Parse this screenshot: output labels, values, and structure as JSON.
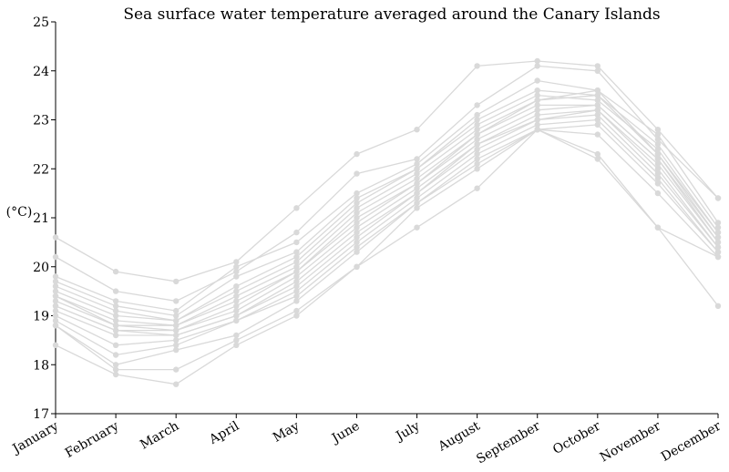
{
  "chart_data": {
    "type": "line",
    "title": "Sea surface water temperature averaged around the Canary Islands",
    "xlabel": "",
    "ylabel": "(°C)",
    "ylim": [
      17,
      25
    ],
    "yticks": [
      "17",
      "18",
      "19",
      "20",
      "21",
      "22",
      "23",
      "24",
      "25"
    ],
    "categories": [
      "January",
      "February",
      "March",
      "April",
      "May",
      "June",
      "July",
      "August",
      "September",
      "October",
      "November",
      "December"
    ],
    "grid": false,
    "legend": "none",
    "line_color": "#d9d9d9",
    "series": [
      {
        "values": [
          20.6,
          19.9,
          19.7,
          20.1,
          21.2,
          22.3,
          22.8,
          24.1,
          24.2,
          24.1,
          22.8,
          21.4
        ]
      },
      {
        "values": [
          20.2,
          19.5,
          19.3,
          19.9,
          20.7,
          21.9,
          22.2,
          23.3,
          24.1,
          24.0,
          22.6,
          21.4
        ]
      },
      {
        "values": [
          19.8,
          19.3,
          19.1,
          20.0,
          20.5,
          21.5,
          22.1,
          23.1,
          23.8,
          23.6,
          22.7,
          20.9
        ]
      },
      {
        "values": [
          19.7,
          19.2,
          19.0,
          19.8,
          20.3,
          21.4,
          22.0,
          23.0,
          23.6,
          23.5,
          22.5,
          20.8
        ]
      },
      {
        "values": [
          19.6,
          19.1,
          18.9,
          19.6,
          20.2,
          21.3,
          22.0,
          22.9,
          23.5,
          23.4,
          22.4,
          20.7
        ]
      },
      {
        "values": [
          19.5,
          19.0,
          18.9,
          19.5,
          20.1,
          21.2,
          21.9,
          22.8,
          23.4,
          23.6,
          22.3,
          20.7
        ]
      },
      {
        "values": [
          19.4,
          18.9,
          18.8,
          19.4,
          20.0,
          21.1,
          21.8,
          22.7,
          23.4,
          23.5,
          22.3,
          20.6
        ]
      },
      {
        "values": [
          19.4,
          18.8,
          18.8,
          19.3,
          19.9,
          21.0,
          21.7,
          22.7,
          23.3,
          23.3,
          22.2,
          20.6
        ]
      },
      {
        "values": [
          19.3,
          18.8,
          18.7,
          19.2,
          19.9,
          20.9,
          21.7,
          22.6,
          23.2,
          23.3,
          22.2,
          20.5
        ]
      },
      {
        "values": [
          19.2,
          18.7,
          18.7,
          19.1,
          19.8,
          20.8,
          21.6,
          22.5,
          23.1,
          23.2,
          22.1,
          20.5
        ]
      },
      {
        "values": [
          19.2,
          18.7,
          18.6,
          19.0,
          19.7,
          20.7,
          21.5,
          22.5,
          23.0,
          23.2,
          22.0,
          20.4
        ]
      },
      {
        "values": [
          19.1,
          18.6,
          18.6,
          19.0,
          19.6,
          20.6,
          21.5,
          22.4,
          23.0,
          23.1,
          21.9,
          20.4
        ]
      },
      {
        "values": [
          19.0,
          18.4,
          18.5,
          18.9,
          19.5,
          20.5,
          21.4,
          22.3,
          22.9,
          23.0,
          21.8,
          20.3
        ]
      },
      {
        "values": [
          18.9,
          18.2,
          18.4,
          18.9,
          19.4,
          20.4,
          21.3,
          22.2,
          22.8,
          22.9,
          21.7,
          20.3
        ]
      },
      {
        "values": [
          18.8,
          18.0,
          18.3,
          18.6,
          19.3,
          20.3,
          21.3,
          22.1,
          22.8,
          22.7,
          21.5,
          20.2
        ]
      },
      {
        "values": [
          18.8,
          17.9,
          17.9,
          18.5,
          19.1,
          20.0,
          21.2,
          22.0,
          22.8,
          22.3,
          20.8,
          20.2
        ]
      },
      {
        "values": [
          18.4,
          17.8,
          17.6,
          18.4,
          19.0,
          20.0,
          20.8,
          21.6,
          22.8,
          22.2,
          20.8,
          19.2
        ]
      }
    ]
  }
}
